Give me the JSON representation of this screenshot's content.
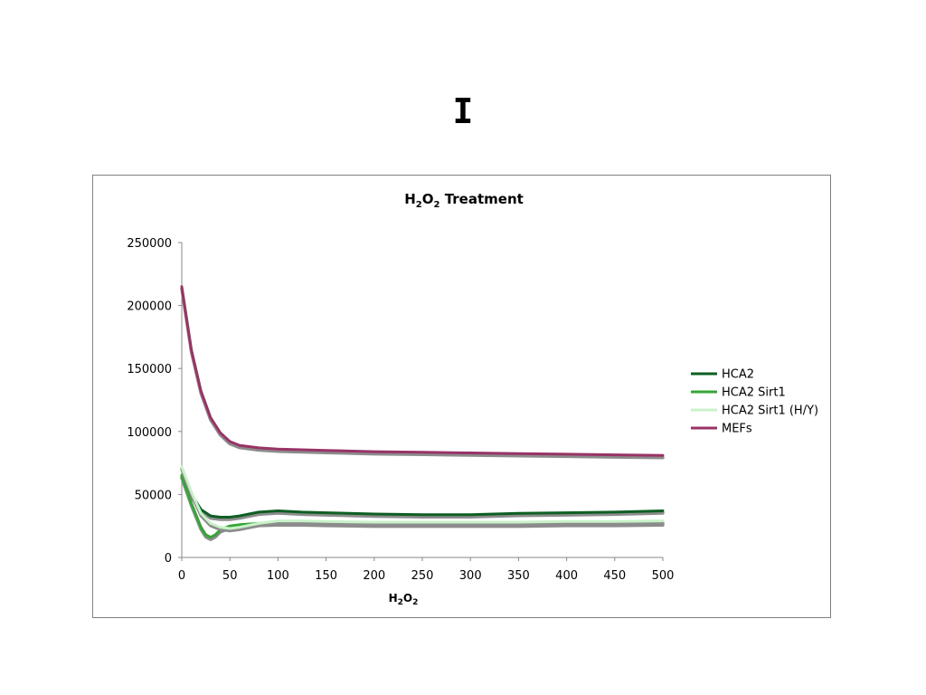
{
  "slide": {
    "title": "I"
  },
  "chart_data": {
    "type": "line",
    "title": {
      "base": "H",
      "sub1": "2",
      "mid": "O",
      "sub2": "2",
      "rest": " Treatment"
    },
    "xlabel": {
      "base": "H",
      "sub1": "2",
      "mid": "O",
      "sub2": "2"
    },
    "ylabel": "",
    "xlim": [
      0,
      500
    ],
    "ylim": [
      0,
      250000
    ],
    "xticks": [
      0,
      50,
      100,
      150,
      200,
      250,
      300,
      350,
      400,
      450,
      500
    ],
    "yticks": [
      0,
      50000,
      100000,
      150000,
      200000,
      250000
    ],
    "grid": false,
    "legend_position": "right",
    "series": [
      {
        "name": "HCA2",
        "color": "#0e5f22",
        "x": [
          0,
          10,
          20,
          30,
          40,
          50,
          60,
          80,
          100,
          125,
          150,
          200,
          250,
          300,
          350,
          400,
          450,
          500
        ],
        "y": [
          65000,
          50000,
          38000,
          33000,
          32000,
          32000,
          33000,
          36000,
          37000,
          36000,
          35500,
          34500,
          34000,
          34000,
          35000,
          35500,
          36000,
          37000
        ]
      },
      {
        "name": "HCA2 Sirt1",
        "color": "#35a535",
        "x": [
          0,
          10,
          20,
          25,
          30,
          35,
          40,
          50,
          60,
          80,
          100,
          125,
          150,
          200,
          250,
          300,
          350,
          400,
          450,
          500
        ],
        "y": [
          65000,
          43000,
          24000,
          18000,
          16000,
          18000,
          22000,
          25000,
          26000,
          27000,
          27500,
          27500,
          27000,
          26500,
          26500,
          26500,
          26500,
          27000,
          27000,
          27500
        ]
      },
      {
        "name": "HCA2 Sirt1 (H/Y)",
        "color": "#c8f2c8",
        "x": [
          0,
          10,
          20,
          30,
          40,
          50,
          60,
          80,
          100,
          125,
          150,
          200,
          250,
          300,
          350,
          400,
          450,
          500
        ],
        "y": [
          72000,
          52000,
          35000,
          27000,
          24000,
          23000,
          24000,
          27000,
          29000,
          29000,
          28500,
          28000,
          28000,
          28000,
          28000,
          28500,
          28500,
          29000
        ]
      },
      {
        "name": "MEFs",
        "color": "#993366",
        "x": [
          0,
          10,
          20,
          30,
          40,
          50,
          60,
          80,
          100,
          150,
          200,
          250,
          300,
          350,
          400,
          450,
          500
        ],
        "y": [
          215000,
          165000,
          132000,
          111000,
          99000,
          92000,
          89000,
          87000,
          86000,
          85000,
          84000,
          83500,
          83000,
          82500,
          82000,
          81500,
          81000
        ]
      }
    ]
  }
}
